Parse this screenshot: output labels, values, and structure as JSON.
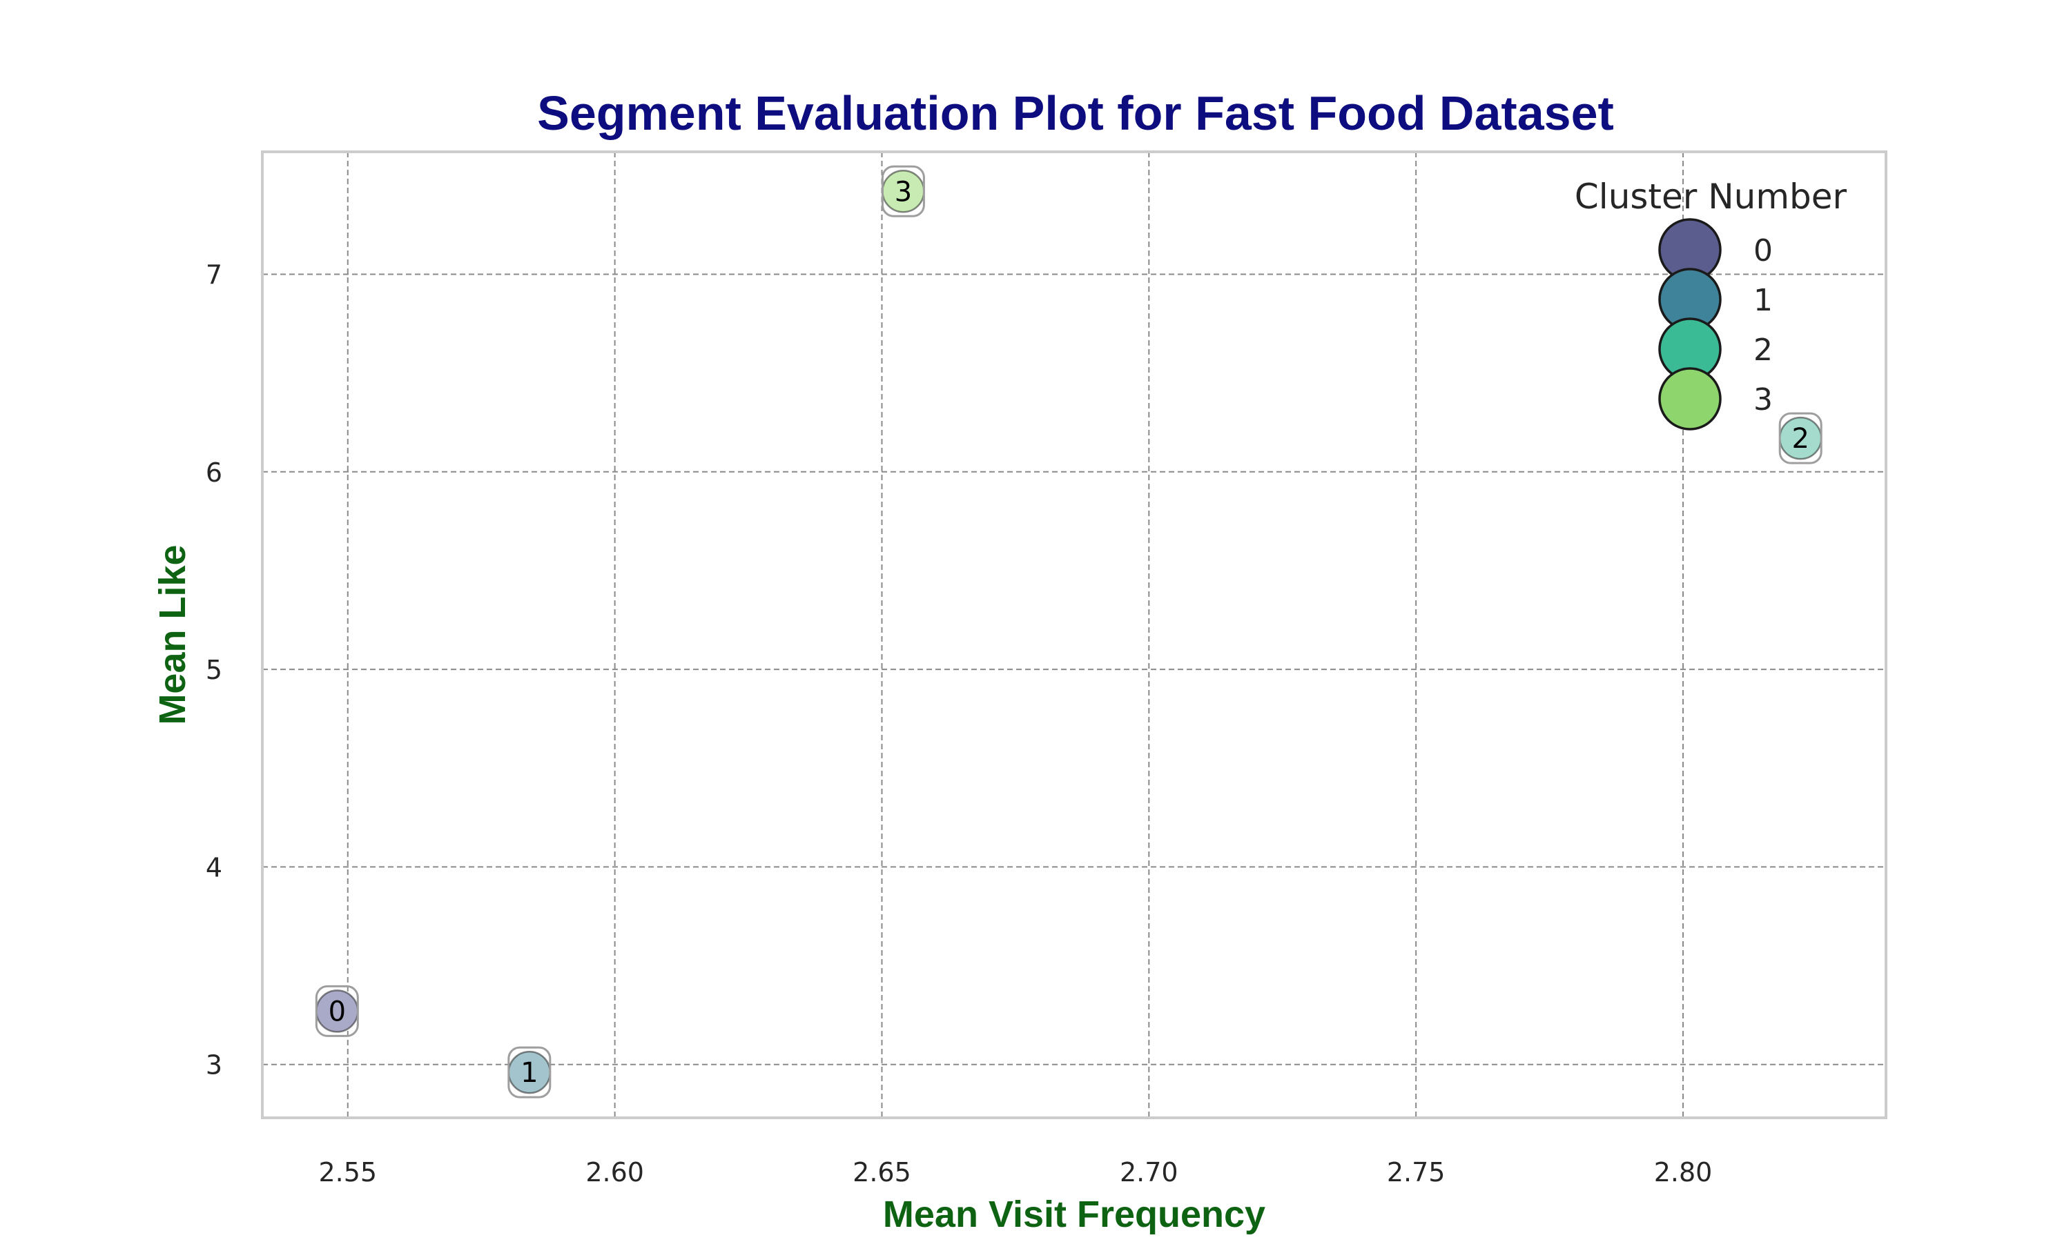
{
  "chart_data": {
    "type": "scatter",
    "title": "Segment Evaluation Plot for Fast Food Dataset",
    "xlabel": "Mean Visit Frequency",
    "ylabel": "Mean Like",
    "xlim": [
      2.534,
      2.838
    ],
    "ylim": [
      2.73,
      7.62
    ],
    "xticks": [
      2.55,
      2.6,
      2.65,
      2.7,
      2.75,
      2.8
    ],
    "xtick_labels": [
      "2.55",
      "2.60",
      "2.65",
      "2.70",
      "2.75",
      "2.80"
    ],
    "yticks": [
      3,
      4,
      5,
      6,
      7
    ],
    "ytick_labels": [
      "3",
      "4",
      "5",
      "6",
      "7"
    ],
    "grid": true,
    "legend": {
      "title": "Cluster Number",
      "placement": "top-right",
      "entries": [
        "0",
        "1",
        "2",
        "3"
      ]
    },
    "points": [
      {
        "cluster": "0",
        "x": 2.548,
        "y": 3.27,
        "color": "#a9aac8"
      },
      {
        "cluster": "1",
        "x": 2.584,
        "y": 2.96,
        "color": "#a3c4cc"
      },
      {
        "cluster": "2",
        "x": 2.822,
        "y": 6.17,
        "color": "#a5dbcc"
      },
      {
        "cluster": "3",
        "x": 2.654,
        "y": 7.42,
        "color": "#c8ebb3"
      }
    ],
    "legend_colors": [
      "#5b5d8f",
      "#3e8399",
      "#3aba95",
      "#8dd56c"
    ],
    "colors": {
      "title": "#0d0d80",
      "axis_label": "#0e6312",
      "grid": "#8a8a8a",
      "frame": "#cccccc",
      "marker_edge": "#262626",
      "label_box": "#9e9e9e"
    }
  }
}
